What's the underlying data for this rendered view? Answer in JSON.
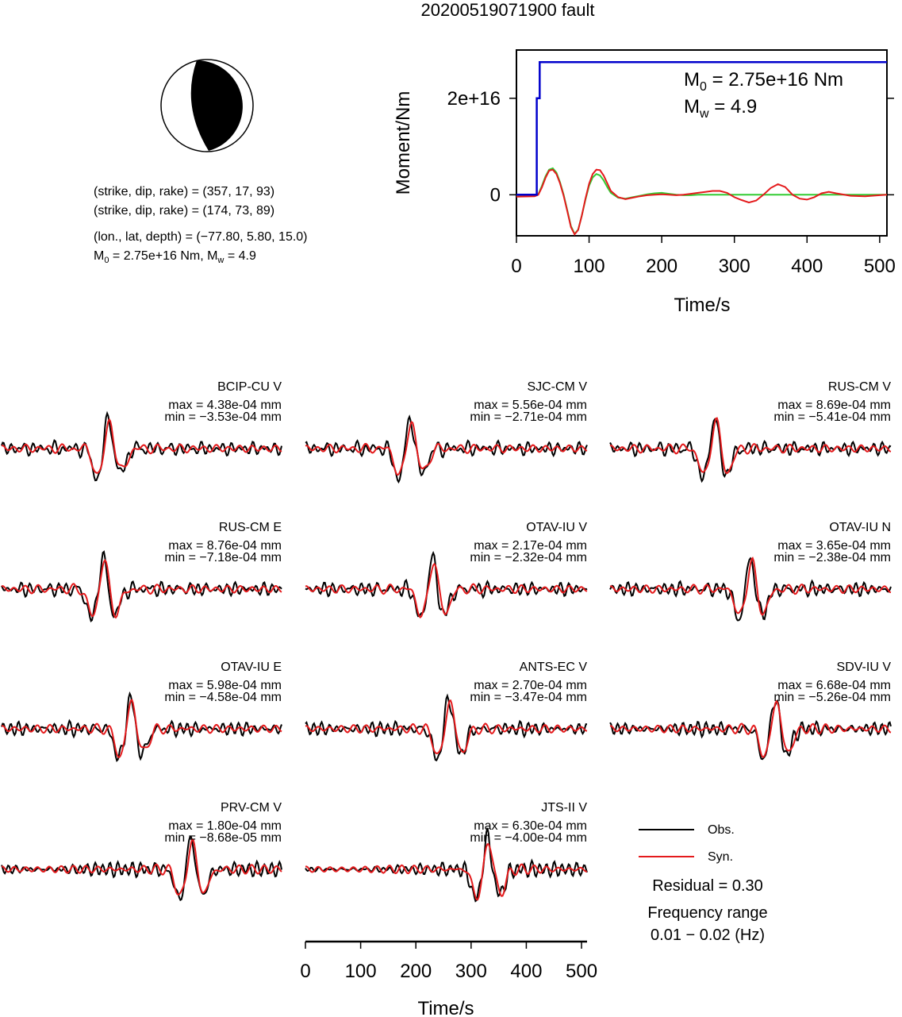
{
  "title": "20200519071900 fault",
  "mechanism": {
    "plane1": "(strike, dip, rake) = (357, 17, 93)",
    "plane2": "(strike, dip, rake) = (174, 73, 89)",
    "location": "(lon., lat, depth) = (−77.80, 5.80, 15.0)",
    "moment_prefix": "M",
    "moment_sub": "0",
    "moment_rest": " = 2.75e+16 Nm, M",
    "mw_sub": "w",
    "mw_rest": " = 4.9"
  },
  "legend": {
    "obs": "Obs.",
    "syn": "Syn.",
    "residual": "Residual = 0.30",
    "freq_title": "Frequency range",
    "freq_range": "0.01 − 0.02 (Hz)"
  },
  "colors": {
    "obs": "#000000",
    "syn": "#e41a1c",
    "moment": "#0000cc",
    "stf_green": "#33cc33"
  },
  "chart_data": [
    {
      "type": "line",
      "name": "moment-rate",
      "xlabel": "Time/s",
      "ylabel": "Moment/Nm",
      "xlim": [
        0,
        510
      ],
      "ylim": [
        -8500000000000000.0,
        3e+16
      ],
      "xticks": [
        "0",
        "100",
        "200",
        "300",
        "400",
        "500"
      ],
      "yticks": [
        {
          "v": 0,
          "label": "0"
        },
        {
          "v": 2e+16,
          "label": "2e+16"
        }
      ],
      "annotation_m0": "M",
      "annotation_m0_sub": "0",
      "annotation_m0_rest": " = 2.75e+16 Nm",
      "annotation_mw": "M",
      "annotation_mw_sub": "w",
      "annotation_mw_rest": " = 4.9",
      "cumulative": {
        "x": [
          0,
          28,
          28,
          32,
          32,
          510
        ],
        "y": [
          0,
          0,
          2e+16,
          2e+16,
          2.75e+16,
          2.75e+16
        ]
      },
      "stf_green": {
        "x": [
          0,
          25,
          30,
          35,
          40,
          45,
          50,
          55,
          60,
          65,
          70,
          75,
          80,
          85,
          90,
          95,
          100,
          105,
          110,
          115,
          120,
          125,
          130,
          140,
          150,
          160,
          170,
          180,
          190,
          200,
          210,
          220,
          230,
          240,
          250,
          260,
          270,
          280,
          290,
          300,
          320,
          340,
          360,
          380,
          400,
          420,
          440,
          460,
          480,
          510
        ],
        "y": [
          -200000000000000.0,
          -200000000000000.0,
          100000000000000.0,
          1800000000000000.0,
          3800000000000000.0,
          5200000000000000.0,
          5500000000000000.0,
          4600000000000000.0,
          2600000000000000.0,
          0,
          -3200000000000000.0,
          -6500000000000000.0,
          -8100000000000000.0,
          -7200000000000000.0,
          -4300000000000000.0,
          -1000000000000000.0,
          1900000000000000.0,
          3600000000000000.0,
          4300000000000000.0,
          4000000000000000.0,
          3000000000000000.0,
          1600000000000000.0,
          400000000000000.0,
          -600000000000000.0,
          -800000000000000.0,
          -500000000000000.0,
          -200000000000000.0,
          100000000000000.0,
          300000000000000.0,
          400000000000000.0,
          200000000000000.0,
          0,
          -100000000000000.0,
          -100000000000000.0,
          0,
          0,
          0,
          0,
          0,
          0,
          0,
          0,
          0,
          0,
          0,
          0,
          0,
          0,
          0,
          0
        ]
      },
      "stf_red": {
        "x": [
          0,
          25,
          30,
          35,
          40,
          45,
          50,
          55,
          60,
          65,
          70,
          75,
          80,
          85,
          90,
          95,
          100,
          105,
          110,
          115,
          120,
          125,
          130,
          140,
          150,
          160,
          170,
          180,
          190,
          200,
          210,
          220,
          230,
          240,
          250,
          260,
          270,
          280,
          290,
          300,
          310,
          320,
          330,
          340,
          350,
          360,
          370,
          380,
          390,
          400,
          410,
          420,
          430,
          440,
          460,
          480,
          500,
          510
        ],
        "y": [
          -400000000000000.0,
          -300000000000000.0,
          0,
          1500000000000000.0,
          3500000000000000.0,
          5000000000000000.0,
          5200000000000000.0,
          4300000000000000.0,
          2400000000000000.0,
          -200000000000000.0,
          -3400000000000000.0,
          -6700000000000000.0,
          -8200000000000000.0,
          -7300000000000000.0,
          -4300000000000000.0,
          -800000000000000.0,
          2300000000000000.0,
          4300000000000000.0,
          5200000000000000.0,
          5100000000000000.0,
          4000000000000000.0,
          2400000000000000.0,
          800000000000000.0,
          -500000000000000.0,
          -900000000000000.0,
          -600000000000000.0,
          -300000000000000.0,
          -100000000000000.0,
          0,
          100000000000000.0,
          0,
          -100000000000000.0,
          0,
          200000000000000.0,
          400000000000000.0,
          600000000000000.0,
          800000000000000.0,
          800000000000000.0,
          400000000000000.0,
          -500000000000000.0,
          -1100000000000000.0,
          -1600000000000000.0,
          -1200000000000000.0,
          0,
          1400000000000000.0,
          2200000000000000.0,
          1600000000000000.0,
          0,
          -800000000000000.0,
          -1000000000000000.0,
          -500000000000000.0,
          300000000000000.0,
          600000000000000.0,
          300000000000000.0,
          -200000000000000.0,
          -300000000000000.0,
          -100000000000000.0,
          0
        ]
      }
    },
    {
      "type": "line",
      "name": "waveforms",
      "xlabel": "Time/s",
      "xlim": [
        0,
        510
      ],
      "xticks": [
        "0",
        "100",
        "200",
        "300",
        "400",
        "500"
      ],
      "traces": [
        {
          "station": "BCIP-CU V",
          "max": "max = 4.38e-04 mm",
          "min": "min = −3.53e-04 mm"
        },
        {
          "station": "SJC-CM V",
          "max": "max = 5.56e-04 mm",
          "min": "min = −2.71e-04 mm"
        },
        {
          "station": "RUS-CM V",
          "max": "max = 8.69e-04 mm",
          "min": "min = −5.41e-04 mm"
        },
        {
          "station": "RUS-CM E",
          "max": "max = 8.76e-04 mm",
          "min": "min = −7.18e-04 mm"
        },
        {
          "station": "OTAV-IU V",
          "max": "max = 2.17e-04 mm",
          "min": "min = −2.32e-04 mm"
        },
        {
          "station": "OTAV-IU N",
          "max": "max = 3.65e-04 mm",
          "min": "min = −2.38e-04 mm"
        },
        {
          "station": "OTAV-IU E",
          "max": "max = 5.98e-04 mm",
          "min": "min = −4.58e-04 mm"
        },
        {
          "station": "ANTS-EC V",
          "max": "max = 2.70e-04 mm",
          "min": "min = −3.47e-04 mm"
        },
        {
          "station": "SDV-IU V",
          "max": "max = 6.68e-04 mm",
          "min": "min = −5.26e-04 mm"
        },
        {
          "station": "PRV-CM V",
          "max": "max = 1.80e-04 mm",
          "min": "min = −8.68e-05 mm"
        },
        {
          "station": "JTS-II V",
          "max": "max = 6.30e-04 mm",
          "min": "min = −4.00e-04 mm"
        }
      ]
    }
  ]
}
